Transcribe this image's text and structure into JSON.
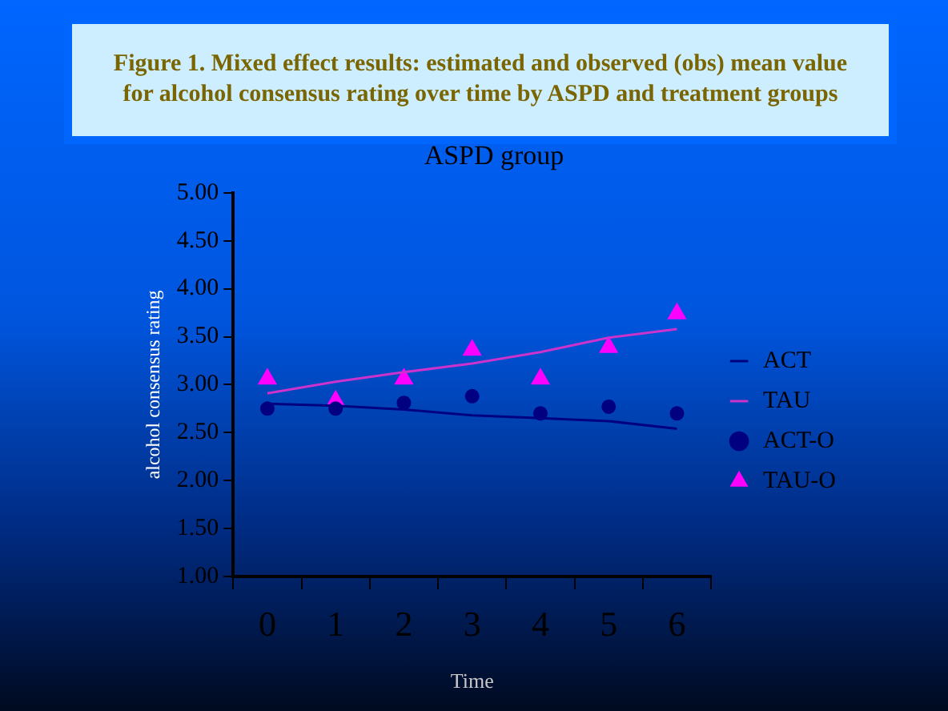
{
  "chart_data": {
    "type": "line",
    "title": "Figure 1. Mixed effect  results: estimated and observed (obs) mean value for alcohol consensus rating over time by ASPD and treatment groups",
    "subtitle": "ASPD group",
    "xlabel": "Time",
    "ylabel": "alcohol consensus rating",
    "categories": [
      "0",
      "1",
      "2",
      "3",
      "4",
      "5",
      "6"
    ],
    "series": [
      {
        "name": "ACT",
        "marker": "none",
        "color": "#000080",
        "values": [
          2.8,
          2.78,
          2.74,
          2.68,
          2.65,
          2.62,
          2.54
        ]
      },
      {
        "name": "TAU",
        "marker": "none",
        "color": "#cc33cc",
        "values": [
          2.91,
          3.03,
          3.13,
          3.22,
          3.34,
          3.49,
          3.58
        ]
      },
      {
        "name": "ACT-O",
        "type": "scatter",
        "marker": "circle",
        "color": "#000080",
        "values": [
          2.75,
          2.75,
          2.81,
          2.88,
          2.7,
          2.77,
          2.7
        ]
      },
      {
        "name": "TAU-O",
        "type": "scatter",
        "marker": "triangle",
        "color": "#ff00ff",
        "values": [
          3.06,
          2.83,
          3.06,
          3.36,
          3.06,
          3.39,
          3.74
        ]
      }
    ],
    "ylim": [
      1,
      5
    ],
    "yticks": [
      {
        "value": 1,
        "label": "1.00"
      },
      {
        "value": 1.5,
        "label": "1.50"
      },
      {
        "value": 2,
        "label": "2.00"
      },
      {
        "value": 2.5,
        "label": "2.50"
      },
      {
        "value": 3,
        "label": "3.00"
      },
      {
        "value": 3.5,
        "label": "3.50"
      },
      {
        "value": 4,
        "label": "4.00"
      },
      {
        "value": 4.5,
        "label": "4.50"
      },
      {
        "value": 5,
        "label": "5.00"
      }
    ],
    "grid": false,
    "legend": "right"
  }
}
